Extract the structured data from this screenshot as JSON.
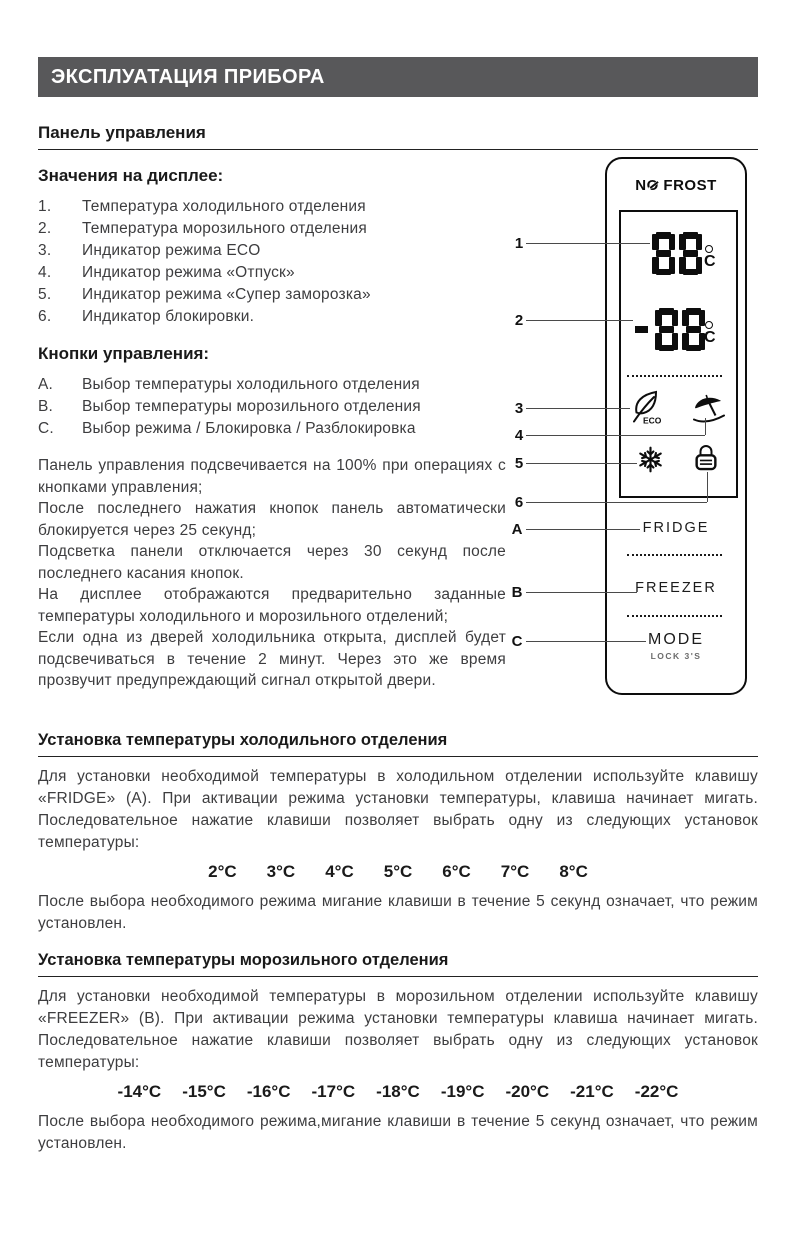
{
  "header": {
    "title": "ЭКСПЛУАТАЦИЯ ПРИБОРА"
  },
  "panel_section": {
    "title": "Панель управления",
    "display_heading": "Значения на дисплее:",
    "display_items": [
      {
        "num": "1.",
        "text": "Температура холодильного отделения"
      },
      {
        "num": "2.",
        "text": "Температура морозильного отделения"
      },
      {
        "num": "3.",
        "text": "Индикатор режима ECO"
      },
      {
        "num": "4.",
        "text": "Индикатор режима «Отпуск»"
      },
      {
        "num": "5.",
        "text": "Индикатор режима «Супер заморозка»"
      },
      {
        "num": "6.",
        "text": "Индикатор блокировки."
      }
    ],
    "buttons_heading": "Кнопки управления:",
    "button_items": [
      {
        "num": "A.",
        "text": "Выбор температуры холодильного отделения"
      },
      {
        "num": "B.",
        "text": "Выбор температуры морозильного отделения"
      },
      {
        "num": "C.",
        "text": "Выбор режима / Блокировка / Разблокировка"
      }
    ],
    "paragraphs": [
      "Панель управления подсвечивается на 100% при операциях с кнопками управления;",
      "После последнего нажатия кнопок панель автоматически блокируется через 25 секунд;",
      "Подсветка панели отключается через 30 секунд после последнего касания кнопок.",
      "На дисплее отображаются предварительно заданные температуры холодильного и морозильного отделений;",
      "Если одна из дверей холодильника открыта, дисплей будет подсвечиваться в течение 2 минут. Через это же время прозвучит предупреждающий сигнал открытой двери."
    ]
  },
  "diagram": {
    "brand_n": "N",
    "brand_o": "O",
    "brand_rest": "FROST",
    "fridge_display": "88",
    "freezer_display": "-88",
    "degree": "°",
    "unit": "C",
    "eco_label": "ECO",
    "fridge_button": "FRIDGE",
    "freezer_button": "FREEZER",
    "mode_button": "MODE",
    "mode_sub": "LOCK 3'S",
    "callouts": [
      "1",
      "2",
      "3",
      "4",
      "5",
      "6",
      "A",
      "B",
      "C"
    ]
  },
  "fridge_section": {
    "title": "Установка температуры холодильного отделения",
    "intro": "Для установки необходимой температуры в холодильном отделении используйте клавишу «FRIDGE» (A). При активации режима установки температуры, клавиша начинает мигать. Последовательное нажатие клавиши позволяет выбрать одну из следующих установок температуры:",
    "temps": [
      "2°C",
      "3°C",
      "4°C",
      "5°C",
      "6°C",
      "7°C",
      "8°C"
    ],
    "outro": "После выбора необходимого режима мигание клавиши в течение 5 секунд означает, что режим установлен."
  },
  "freezer_section": {
    "title": "Установка температуры морозильного отделения",
    "intro": "Для установки необходимой температуры в морозильном отделении используйте клавишу «FREEZER» (B). При активации режима установки температуры клавиша начинает мигать. Последовательное нажатие клавиши позволяет выбрать одну из следующих установок температуры:",
    "temps": [
      "-14°C",
      "-15°C",
      "-16°C",
      "-17°C",
      "-18°C",
      "-19°C",
      "-20°C",
      "-21°C",
      "-22°C"
    ],
    "outro": "После выбора необходимого режима,мигание клавиши в течение 5 секунд означает, что режим установлен."
  }
}
